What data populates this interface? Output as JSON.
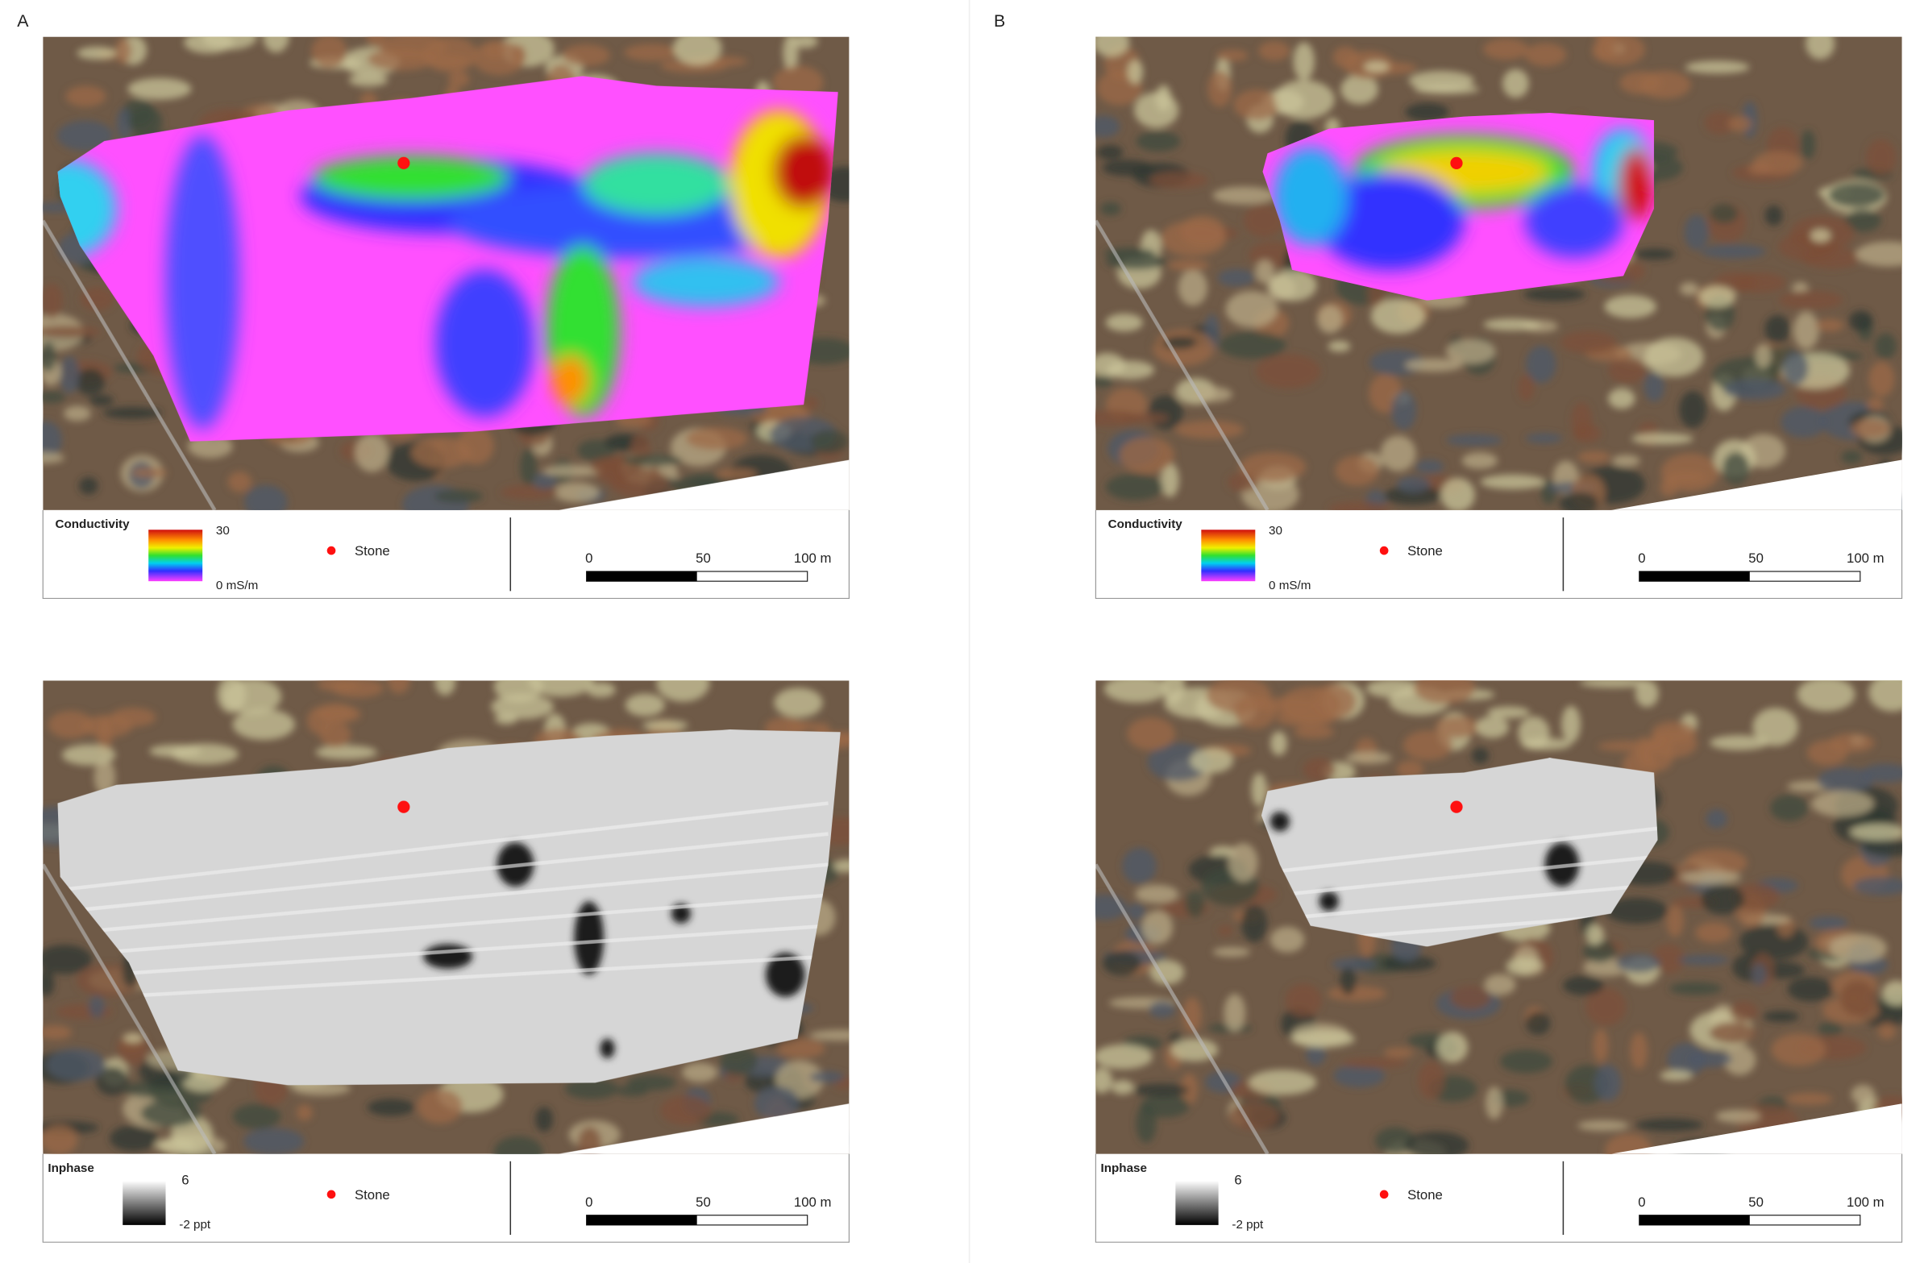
{
  "panels": [
    {
      "label": "A",
      "maps": [
        {
          "legend_title": "Conductivity",
          "legend_max": "30",
          "legend_min": "0 mS/m",
          "marker_label": "Stone",
          "scale_labels": [
            "0",
            "50",
            "100 m"
          ]
        },
        {
          "legend_title": "Inphase",
          "legend_max": "6",
          "legend_min": "-2 ppt",
          "marker_label": "Stone",
          "scale_labels": [
            "0",
            "50",
            "100 m"
          ]
        }
      ]
    },
    {
      "label": "B",
      "maps": [
        {
          "legend_title": "Conductivity",
          "legend_max": "30",
          "legend_min": "0 mS/m",
          "marker_label": "Stone",
          "scale_labels": [
            "0",
            "50",
            "100 m"
          ]
        },
        {
          "legend_title": "Inphase",
          "legend_max": "6",
          "legend_min": "-2 ppt",
          "marker_label": "Stone",
          "scale_labels": [
            "0",
            "50",
            "100 m"
          ]
        }
      ]
    }
  ]
}
